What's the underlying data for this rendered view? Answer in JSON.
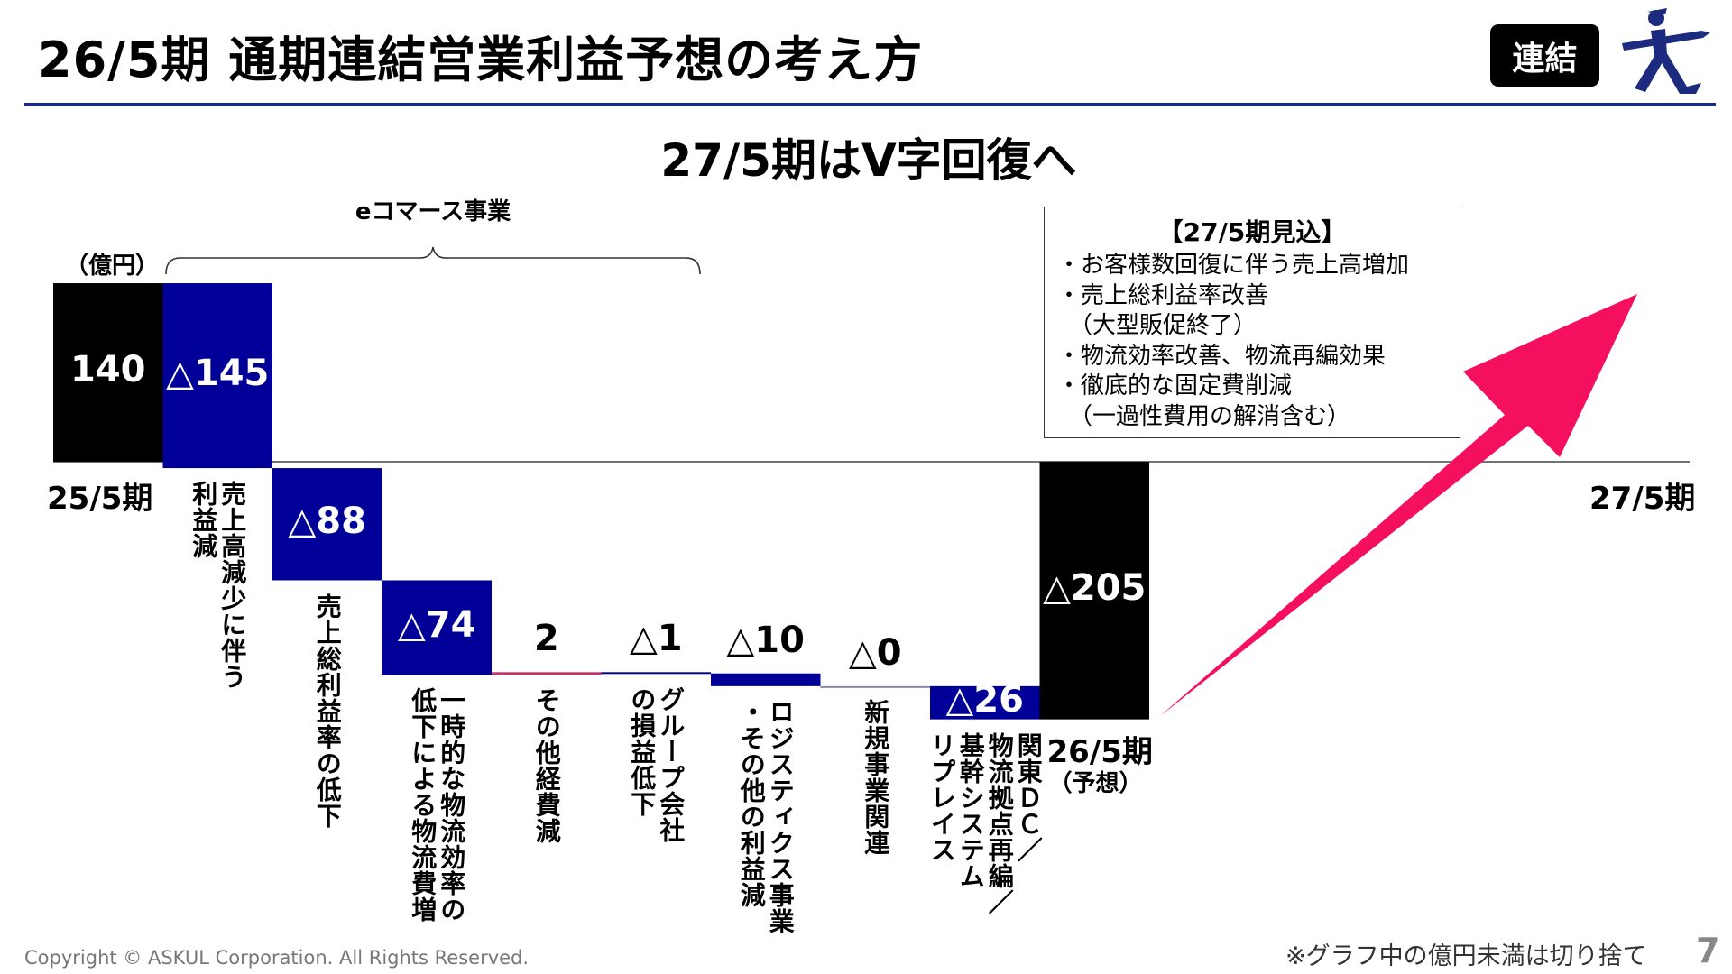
{
  "header": {
    "title": "26/5期 通期連結営業利益予想の考え方",
    "badge": "連結",
    "logo": "askul-mascot-logo"
  },
  "subtitle": "27/5期はV字回復へ",
  "segment_label": "eコマース事業",
  "unit": "（億円）",
  "outlook_box": {
    "title": "【27/5期見込】",
    "items": [
      "・お客様数回復に伴う売上高増加",
      "・売上総利益率改善",
      "　（大型販促終了）",
      "・物流効率改善、物流再編効果",
      "・徹底的な固定費削減",
      "　（一過性費用の解消含む）"
    ]
  },
  "colors": {
    "navy": "#000099",
    "black": "#000000",
    "arrow": "#f5105f",
    "rule": "#1c2a80",
    "small_positive": "#c2336b"
  },
  "chart_data": {
    "type": "waterfall",
    "unit": "億円",
    "start": {
      "label": "25/5期",
      "value": 140,
      "display": "140"
    },
    "steps": [
      {
        "label": "売上高減少に伴う\n利益減",
        "value": -145,
        "display": "△145"
      },
      {
        "label": "売上総利益率の低下",
        "value": -88,
        "display": "△88"
      },
      {
        "label": "一時的な物流効率の\n低下による物流費増",
        "value": -74,
        "display": "△74"
      },
      {
        "label": "その他経費減",
        "value": 2,
        "display": "2"
      },
      {
        "label": "グループ会社\nの損益低下",
        "value": -1,
        "display": "△1"
      },
      {
        "label": "ロジスティクス事業\n・その他の利益減",
        "value": -10,
        "display": "△10"
      },
      {
        "label": "新規事業関連",
        "value": 0,
        "display": "△0"
      },
      {
        "label": "関東ＤＣ／\n物流拠点再編／\n基幹システム\nリプレイス",
        "value": -26,
        "display": "△26"
      }
    ],
    "end": {
      "label": "26/5期",
      "sublabel": "（予想）",
      "value": -205,
      "display": "△205"
    },
    "next": {
      "label": "27/5期",
      "trend": "up"
    }
  },
  "footer": {
    "copyright": "Copyright © ASKUL Corporation. All Rights Reserved.",
    "note": "※グラフ中の億円未満は切り捨て",
    "page": "7"
  }
}
